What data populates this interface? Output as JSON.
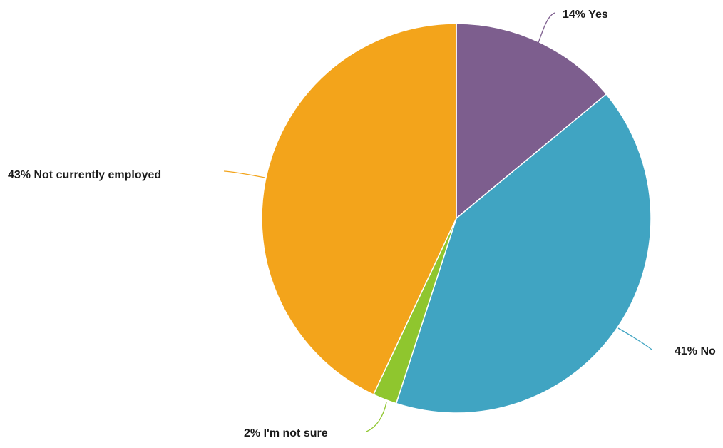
{
  "chart_data": {
    "type": "pie",
    "title": "",
    "slices": [
      {
        "label": "Yes",
        "value": 14,
        "display": "14% Yes",
        "color": "#7D5E8E"
      },
      {
        "label": "No",
        "value": 41,
        "display": "41% No",
        "color": "#40A4C2"
      },
      {
        "label": "I'm not sure",
        "value": 2,
        "display": "2% I'm not sure",
        "color": "#8FC62E"
      },
      {
        "label": "Not currently employed",
        "value": 43,
        "display": "43% Not currently employed",
        "color": "#F3A41B"
      }
    ],
    "start_angle": "12 o'clock",
    "direction": "clockwise",
    "legend": "none"
  }
}
